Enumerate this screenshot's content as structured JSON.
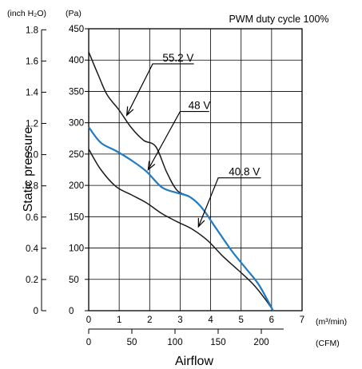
{
  "chart_data": {
    "type": "line",
    "title": "PWM duty cycle 100%",
    "xlabel": "Airflow",
    "ylabel": "Static pressure",
    "x_unit_primary": "(m³/min)",
    "x_unit_secondary": "(CFM)",
    "y_unit_left": "(inch H₂O)",
    "y_unit_right": "(Pa)",
    "xlim": [
      0,
      7
    ],
    "ylim": [
      0,
      450
    ],
    "grid": true,
    "x_ticks_m3min": [
      "0",
      "1",
      "2",
      "3",
      "4",
      "5",
      "6",
      "7"
    ],
    "x_ticks_cfm": [
      {
        "value": 0,
        "label": "0"
      },
      {
        "value": 50,
        "label": "50"
      },
      {
        "value": 100,
        "label": "100"
      },
      {
        "value": 150,
        "label": "150"
      },
      {
        "value": 200,
        "label": "200"
      }
    ],
    "y_ticks_pa": [
      "0",
      "50",
      "100",
      "150",
      "200",
      "250",
      "300",
      "350",
      "400",
      "450"
    ],
    "y_ticks_inch": [
      {
        "value": 0,
        "label": "0"
      },
      {
        "value": 0.2,
        "label": "0.2"
      },
      {
        "value": 0.4,
        "label": "0.4"
      },
      {
        "value": 0.6,
        "label": "0.6"
      },
      {
        "value": 0.8,
        "label": "0.8"
      },
      {
        "value": 1.0,
        "label": "1.0"
      },
      {
        "value": 1.2,
        "label": "1.2"
      },
      {
        "value": 1.4,
        "label": "1.4"
      },
      {
        "value": 1.6,
        "label": "1.6"
      },
      {
        "value": 1.8,
        "label": "1.8"
      }
    ],
    "series": [
      {
        "name": "55.2 V",
        "color": "#1a1a1a",
        "points": [
          [
            0,
            413
          ],
          [
            0.3,
            378
          ],
          [
            0.6,
            345
          ],
          [
            1,
            320
          ],
          [
            1.4,
            292
          ],
          [
            1.8,
            272
          ],
          [
            2.2,
            262
          ],
          [
            2.55,
            222
          ],
          [
            2.9,
            192
          ],
          [
            3.3,
            182
          ],
          [
            3.7,
            165
          ],
          [
            4.2,
            130
          ],
          [
            4.7,
            95
          ],
          [
            5.2,
            65
          ],
          [
            5.6,
            40
          ],
          [
            6.05,
            0
          ]
        ]
      },
      {
        "name": "48 V",
        "color": "#1f7bc4",
        "points": [
          [
            0,
            293
          ],
          [
            0.4,
            268
          ],
          [
            0.9,
            255
          ],
          [
            1.4,
            240
          ],
          [
            1.9,
            222
          ],
          [
            2.4,
            197
          ],
          [
            2.9,
            188
          ],
          [
            3.3,
            182
          ],
          [
            3.7,
            165
          ],
          [
            4.2,
            130
          ],
          [
            4.7,
            95
          ],
          [
            5.2,
            65
          ],
          [
            5.6,
            40
          ],
          [
            6.05,
            0
          ]
        ]
      },
      {
        "name": "40.8 V",
        "color": "#1a1a1a",
        "points": [
          [
            0,
            258
          ],
          [
            0.4,
            225
          ],
          [
            0.9,
            198
          ],
          [
            1.4,
            185
          ],
          [
            1.9,
            172
          ],
          [
            2.4,
            155
          ],
          [
            2.9,
            142
          ],
          [
            3.4,
            130
          ],
          [
            3.9,
            112
          ],
          [
            4.4,
            87
          ],
          [
            4.9,
            65
          ],
          [
            5.4,
            42
          ],
          [
            5.8,
            18
          ],
          [
            6.05,
            0
          ]
        ]
      }
    ],
    "annotations": [
      {
        "label": "55.2 V",
        "tip": [
          1.25,
          312
        ],
        "corner": [
          2.1,
          394
        ],
        "end": [
          3.45,
          394
        ]
      },
      {
        "label": "48 V",
        "tip": [
          1.95,
          225
        ],
        "corner": [
          3.0,
          318
        ],
        "end": [
          3.95,
          318
        ]
      },
      {
        "label": "40.8 V",
        "tip": [
          3.6,
          134
        ],
        "corner": [
          4.25,
          212
        ],
        "end": [
          5.65,
          212
        ]
      }
    ]
  }
}
